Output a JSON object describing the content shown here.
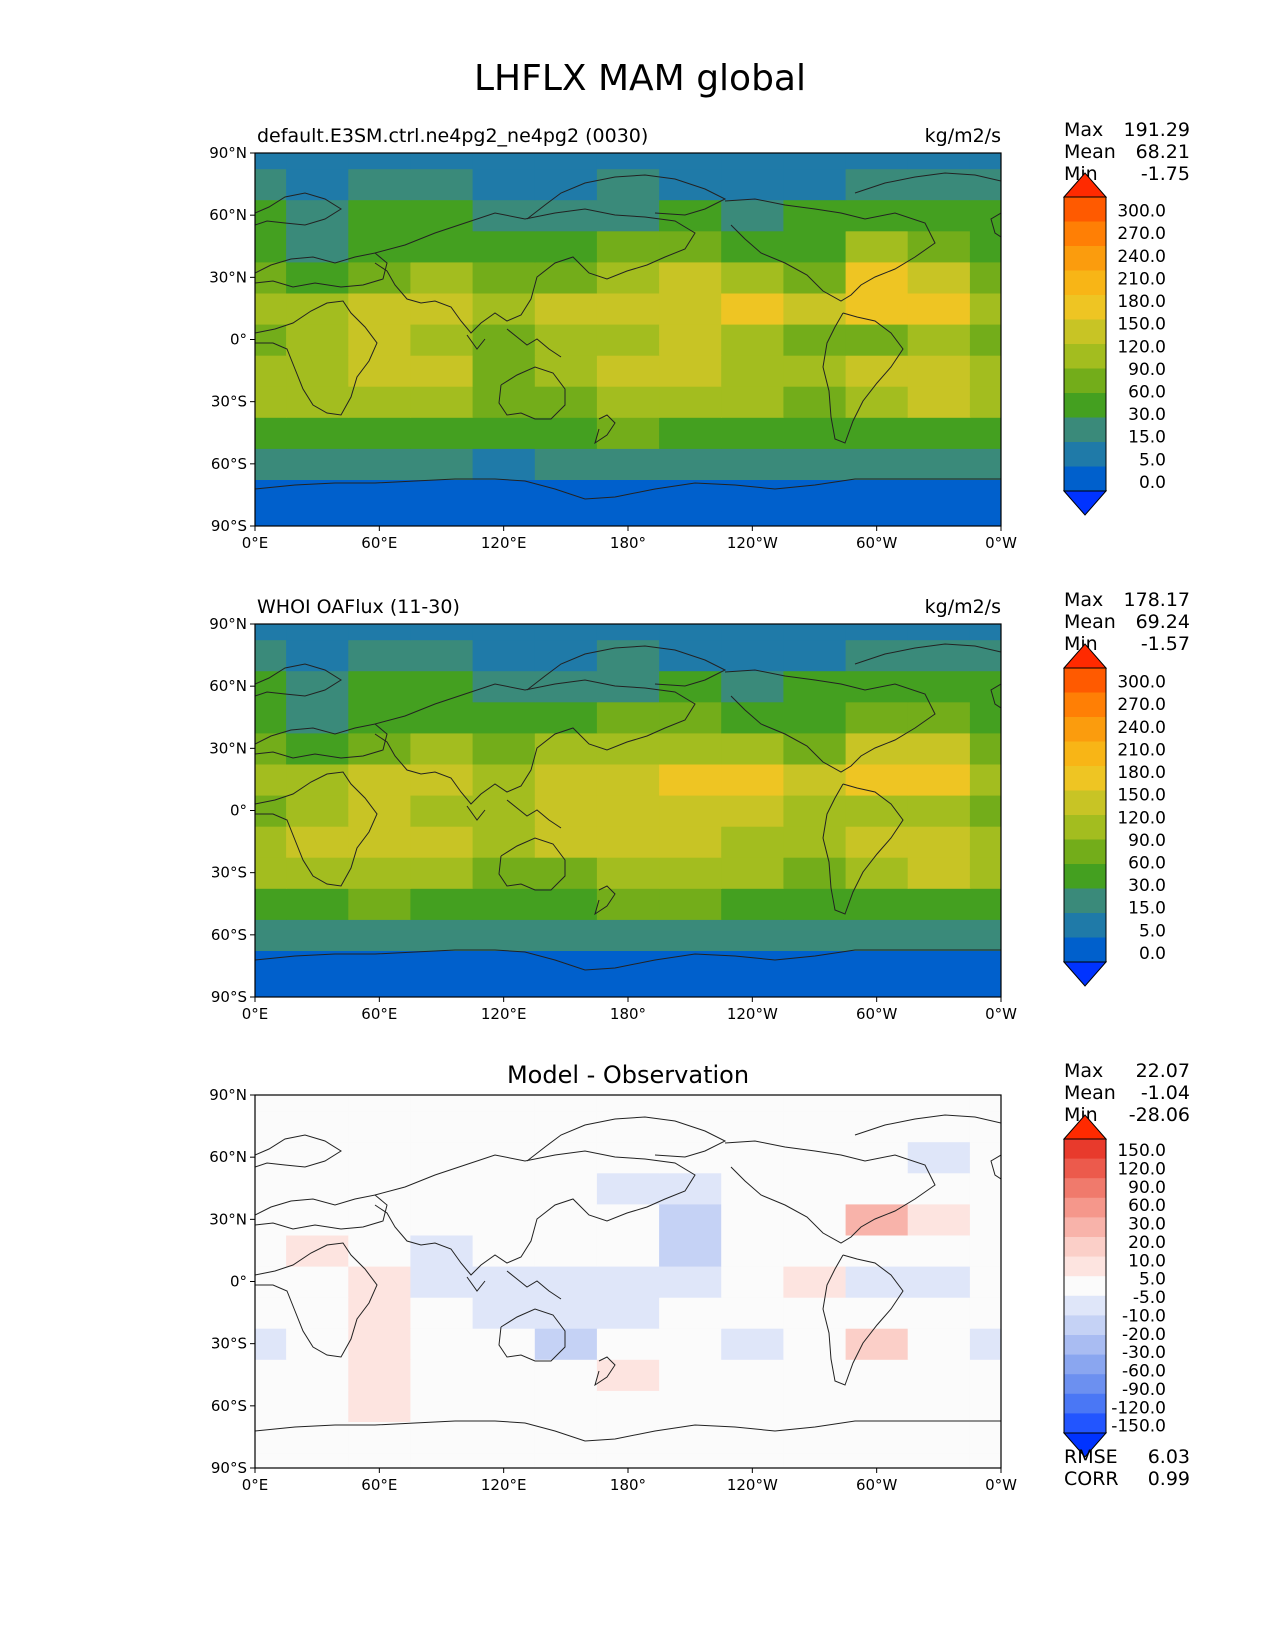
{
  "title": "LHFLX MAM global",
  "axes": {
    "lat_ticks": [
      "90°N",
      "60°N",
      "30°N",
      "0°",
      "30°S",
      "60°S",
      "90°S"
    ],
    "lon_ticks": [
      "0°E",
      "60°E",
      "120°E",
      "180°",
      "120°W",
      "60°W",
      "0°W"
    ]
  },
  "panels": [
    {
      "title_left": "default.E3SM.ctrl.ne4pg2_ne4pg2 (0030)",
      "title_center": "",
      "units": "kg/m2/s",
      "stats": [
        {
          "label": "Max",
          "value": "191.29"
        },
        {
          "label": "Mean",
          "value": "68.21"
        },
        {
          "label": "Min",
          "value": "-1.75"
        }
      ],
      "colorbar_labels": [
        "300.0",
        "270.0",
        "240.0",
        "210.0",
        "180.0",
        "150.0",
        "120.0",
        "90.0",
        "60.0",
        "30.0",
        "15.0",
        "5.0",
        "0.0"
      ]
    },
    {
      "title_left": "WHOI OAFlux (11-30)",
      "title_center": "",
      "units": "kg/m2/s",
      "stats": [
        {
          "label": "Max",
          "value": "178.17"
        },
        {
          "label": "Mean",
          "value": "69.24"
        },
        {
          "label": "Min",
          "value": "-1.57"
        }
      ],
      "colorbar_labels": [
        "300.0",
        "270.0",
        "240.0",
        "210.0",
        "180.0",
        "150.0",
        "120.0",
        "90.0",
        "60.0",
        "30.0",
        "15.0",
        "5.0",
        "0.0"
      ]
    },
    {
      "title_left": "",
      "title_center": "Model - Observation",
      "units": "",
      "stats": [
        {
          "label": "Max",
          "value": "22.07"
        },
        {
          "label": "Mean",
          "value": "-1.04"
        },
        {
          "label": "Min",
          "value": "-28.06"
        }
      ],
      "colorbar_labels": [
        "150.0",
        "120.0",
        "90.0",
        "60.0",
        "30.0",
        "20.0",
        "10.0",
        "5.0",
        "-5.0",
        "-10.0",
        "-20.0",
        "-30.0",
        "-60.0",
        "-90.0",
        "-120.0",
        "-150.0"
      ],
      "extra_stats": [
        {
          "label": "RMSE",
          "value": "6.03"
        },
        {
          "label": "CORR",
          "value": "0.99"
        }
      ]
    }
  ],
  "colors": {
    "field_levels": [
      "#0033ff",
      "#0060cc",
      "#1f7aa8",
      "#3a8a7a",
      "#44a020",
      "#73ad1a",
      "#a3bd1f",
      "#c8c425",
      "#eec523",
      "#f8b516",
      "#fb9c0d",
      "#ff7f05",
      "#ff5a00",
      "#ff2a00"
    ],
    "diff_levels": [
      "#0033ff",
      "#2255ff",
      "#4a77f5",
      "#6c90f0",
      "#8aa6f0",
      "#a9bcf2",
      "#c5d2f5",
      "#dfe6f9",
      "#fbfbfb",
      "#fde4e0",
      "#fbcfc8",
      "#f8b3aa",
      "#f5978b",
      "#f07a6c",
      "#ec5a4c",
      "#e83a2c",
      "#ff2a00"
    ]
  },
  "chart_data": [
    {
      "type": "heatmap",
      "title": "default.E3SM.ctrl.ne4pg2_ne4pg2 (0030)",
      "units": "kg/m2/s",
      "xlim": [
        0,
        360
      ],
      "ylim": [
        -90,
        90
      ],
      "x_grid": [
        0,
        30,
        60,
        90,
        120,
        150,
        180,
        210,
        240,
        270,
        300,
        330,
        360
      ],
      "y_grid": [
        -90,
        -75,
        -60,
        -45,
        -30,
        -15,
        0,
        15,
        30,
        45,
        60,
        75,
        90
      ],
      "values": [
        [
          0,
          0,
          0,
          0,
          0,
          0,
          0,
          0,
          0,
          0,
          0,
          0,
          0
        ],
        [
          2,
          2,
          2,
          3,
          1,
          1,
          2,
          3,
          3,
          3,
          3,
          3,
          2
        ],
        [
          20,
          20,
          18,
          15,
          14,
          16,
          18,
          20,
          22,
          20,
          18,
          18,
          20
        ],
        [
          40,
          50,
          55,
          50,
          45,
          50,
          60,
          55,
          50,
          35,
          40,
          45,
          40
        ],
        [
          90,
          100,
          110,
          105,
          80,
          70,
          95,
          110,
          90,
          60,
          110,
          120,
          90
        ],
        [
          100,
          115,
          130,
          120,
          80,
          110,
          140,
          120,
          100,
          90,
          120,
          130,
          100
        ],
        [
          80,
          90,
          120,
          95,
          80,
          110,
          115,
          120,
          110,
          80,
          80,
          95,
          80
        ],
        [
          95,
          110,
          140,
          120,
          110,
          130,
          130,
          145,
          150,
          130,
          150,
          165,
          95
        ],
        [
          60,
          55,
          80,
          90,
          60,
          80,
          95,
          120,
          115,
          60,
          150,
          140,
          60
        ],
        [
          30,
          20,
          40,
          45,
          30,
          45,
          60,
          70,
          45,
          30,
          90,
          80,
          30
        ],
        [
          30,
          20,
          35,
          45,
          15,
          20,
          25,
          30,
          25,
          30,
          40,
          30,
          30
        ],
        [
          15,
          10,
          15,
          20,
          8,
          10,
          15,
          10,
          10,
          10,
          15,
          15,
          15
        ],
        [
          5,
          5,
          5,
          5,
          5,
          5,
          5,
          5,
          5,
          5,
          5,
          5,
          5
        ]
      ],
      "levels": [
        0,
        5,
        15,
        30,
        60,
        90,
        120,
        150,
        180,
        210,
        240,
        270,
        300
      ]
    },
    {
      "type": "heatmap",
      "title": "WHOI OAFlux (11-30)",
      "units": "kg/m2/s",
      "xlim": [
        0,
        360
      ],
      "ylim": [
        -90,
        90
      ],
      "x_grid": [
        0,
        30,
        60,
        90,
        120,
        150,
        180,
        210,
        240,
        270,
        300,
        330,
        360
      ],
      "y_grid": [
        -90,
        -75,
        -60,
        -45,
        -30,
        -15,
        0,
        15,
        30,
        45,
        60,
        75,
        90
      ],
      "values": [
        [
          0,
          0,
          0,
          0,
          0,
          0,
          0,
          0,
          0,
          0,
          0,
          0,
          0
        ],
        [
          2,
          2,
          2,
          3,
          1,
          1,
          2,
          3,
          3,
          3,
          3,
          3,
          2
        ],
        [
          20,
          22,
          20,
          18,
          15,
          16,
          18,
          20,
          22,
          20,
          18,
          20,
          20
        ],
        [
          45,
          52,
          60,
          55,
          50,
          55,
          60,
          60,
          55,
          45,
          45,
          50,
          45
        ],
        [
          95,
          105,
          115,
          110,
          85,
          80,
          100,
          110,
          95,
          70,
          110,
          120,
          95
        ],
        [
          105,
          120,
          135,
          125,
          95,
          120,
          135,
          120,
          105,
          95,
          120,
          130,
          105
        ],
        [
          85,
          95,
          125,
          110,
          95,
          120,
          120,
          130,
          120,
          90,
          90,
          100,
          85
        ],
        [
          100,
          115,
          140,
          125,
          110,
          130,
          140,
          160,
          150,
          130,
          150,
          160,
          100
        ],
        [
          60,
          50,
          75,
          90,
          70,
          90,
          100,
          110,
          100,
          70,
          130,
          125,
          60
        ],
        [
          30,
          25,
          40,
          50,
          35,
          50,
          60,
          65,
          50,
          35,
          80,
          70,
          30
        ],
        [
          30,
          20,
          35,
          45,
          15,
          20,
          25,
          30,
          25,
          30,
          40,
          30,
          30
        ],
        [
          15,
          10,
          15,
          20,
          8,
          10,
          15,
          10,
          10,
          10,
          15,
          15,
          15
        ],
        [
          5,
          5,
          5,
          5,
          5,
          5,
          5,
          5,
          5,
          5,
          5,
          5,
          5
        ]
      ],
      "levels": [
        0,
        5,
        15,
        30,
        60,
        90,
        120,
        150,
        180,
        210,
        240,
        270,
        300
      ]
    },
    {
      "type": "heatmap",
      "title": "Model - Observation",
      "xlim": [
        0,
        360
      ],
      "ylim": [
        -90,
        90
      ],
      "x_grid": [
        0,
        30,
        60,
        90,
        120,
        150,
        180,
        210,
        240,
        270,
        300,
        330,
        360
      ],
      "y_grid": [
        -90,
        -75,
        -60,
        -45,
        -30,
        -15,
        0,
        15,
        30,
        45,
        60,
        75,
        90
      ],
      "values": [
        [
          0,
          0,
          0,
          0,
          0,
          0,
          0,
          0,
          0,
          0,
          0,
          0,
          0
        ],
        [
          0,
          0,
          0,
          0,
          0,
          0,
          0,
          0,
          0,
          0,
          0,
          0,
          0
        ],
        [
          0,
          0,
          6,
          0,
          0,
          0,
          0,
          0,
          0,
          0,
          0,
          0,
          0
        ],
        [
          0,
          2,
          6,
          0,
          -4,
          0,
          7,
          0,
          0,
          0,
          0,
          4,
          0
        ],
        [
          -6,
          0,
          7,
          0,
          -5,
          -12,
          0,
          0,
          -6,
          0,
          16,
          0,
          -6
        ],
        [
          0,
          0,
          6,
          0,
          -6,
          -10,
          -6,
          -5,
          -5,
          0,
          0,
          0,
          0
        ],
        [
          0,
          0,
          7,
          -6,
          -9,
          -8,
          -6,
          -6,
          -5,
          6,
          -6,
          -7,
          0
        ],
        [
          0,
          7,
          0,
          -6,
          -5,
          0,
          -5,
          -12,
          0,
          0,
          0,
          0,
          0
        ],
        [
          0,
          0,
          0,
          0,
          0,
          0,
          -5,
          -12,
          0,
          0,
          20,
          8,
          0
        ],
        [
          0,
          0,
          0,
          0,
          0,
          0,
          -10,
          -8,
          0,
          0,
          0,
          0,
          0
        ],
        [
          0,
          0,
          0,
          0,
          0,
          0,
          0,
          0,
          0,
          0,
          0,
          -6,
          0
        ],
        [
          0,
          0,
          0,
          0,
          0,
          0,
          0,
          0,
          0,
          0,
          0,
          0,
          0
        ],
        [
          0,
          0,
          0,
          0,
          0,
          0,
          0,
          0,
          0,
          0,
          0,
          0,
          0
        ]
      ],
      "levels": [
        -150,
        -120,
        -90,
        -60,
        -30,
        -20,
        -10,
        -5,
        5,
        10,
        20,
        30,
        60,
        90,
        120,
        150
      ]
    }
  ]
}
